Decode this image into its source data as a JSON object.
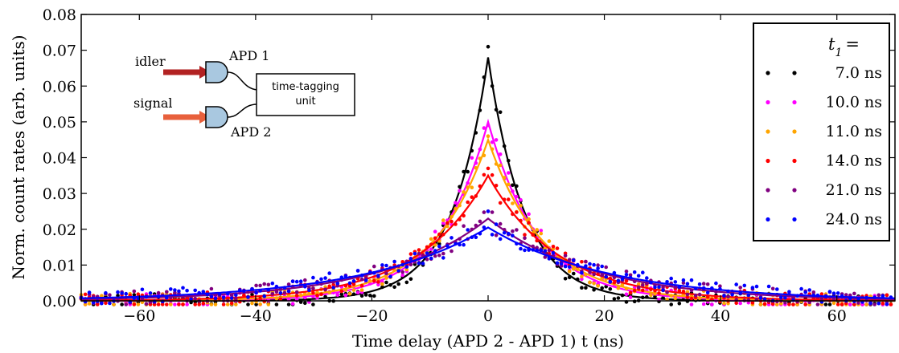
{
  "chart_data": {
    "type": "scatter",
    "xlabel": "Time delay (APD 2 - APD 1) t (ns)",
    "ylabel": "Norm. count rates (arb. units)",
    "xlim": [
      -70,
      70
    ],
    "ylim": [
      0.0,
      0.08
    ],
    "xticks": [
      "−60",
      "−40",
      "−20",
      "0",
      "20",
      "40",
      "60"
    ],
    "xtick_values": [
      -60,
      -40,
      -20,
      0,
      20,
      40,
      60
    ],
    "yticks": [
      "0.00",
      "0.01",
      "0.02",
      "0.03",
      "0.04",
      "0.05",
      "0.06",
      "0.07",
      "0.08"
    ],
    "ytick_values": [
      0.0,
      0.01,
      0.02,
      0.03,
      0.04,
      0.05,
      0.06,
      0.07,
      0.08
    ],
    "grid": false,
    "legend_position": "top-right",
    "legend_title": "t1 =",
    "series": [
      {
        "name": "7.0 ns",
        "color": "#000000",
        "peak": 0.068,
        "tau": 6.2,
        "dots_peak": 0.071
      },
      {
        "name": "10.0 ns",
        "color": "#ff00ff",
        "peak": 0.05,
        "tau": 8.5,
        "dots_peak": 0.049
      },
      {
        "name": "11.0 ns",
        "color": "#ffa500",
        "peak": 0.045,
        "tau": 9.5,
        "dots_peak": 0.046
      },
      {
        "name": "14.0 ns",
        "color": "#ff0000",
        "peak": 0.035,
        "tau": 12.0,
        "dots_peak": 0.037
      },
      {
        "name": "21.0 ns",
        "color": "#800080",
        "peak": 0.023,
        "tau": 18.0,
        "dots_peak": 0.025
      },
      {
        "name": "24.0 ns",
        "color": "#0000ff",
        "peak": 0.0205,
        "tau": 21.0,
        "dots_peak": 0.025
      }
    ]
  },
  "inset": {
    "idler_label": "idler",
    "signal_label": "signal",
    "apd1_label": "APD 1",
    "apd2_label": "APD 2",
    "unit_line1": "time-tagging",
    "unit_line2": "unit",
    "idler_color": "#b22222",
    "signal_color": "#e8603c",
    "detector_color": "#a9c8e0"
  }
}
